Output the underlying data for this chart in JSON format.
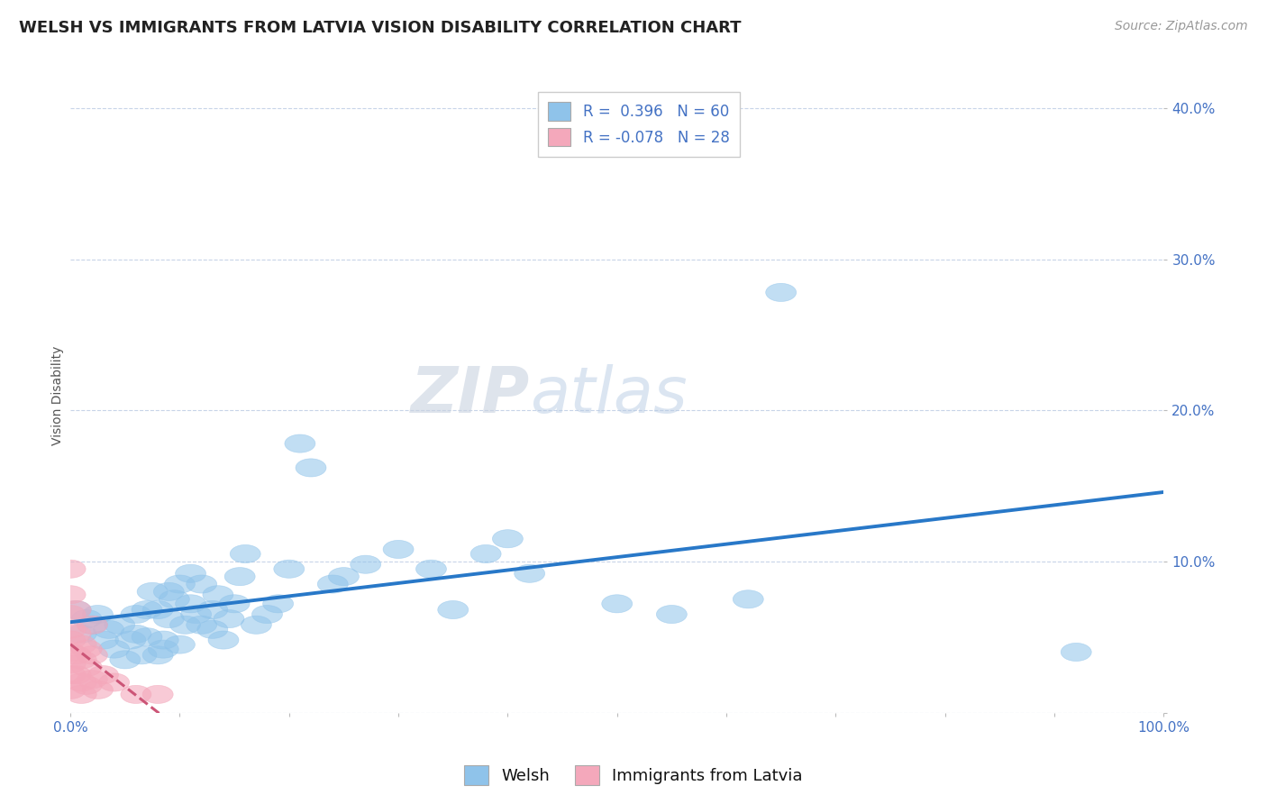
{
  "title": "WELSH VS IMMIGRANTS FROM LATVIA VISION DISABILITY CORRELATION CHART",
  "source": "Source: ZipAtlas.com",
  "ylabel": "Vision Disability",
  "xlim": [
    0.0,
    1.0
  ],
  "ylim": [
    0.0,
    0.42
  ],
  "xticks": [
    0.0,
    0.1,
    0.2,
    0.3,
    0.4,
    0.5,
    0.6,
    0.7,
    0.8,
    0.9,
    1.0
  ],
  "yticks": [
    0.0,
    0.1,
    0.2,
    0.3,
    0.4
  ],
  "ytick_labels": [
    "",
    "10.0%",
    "20.0%",
    "30.0%",
    "40.0%"
  ],
  "xtick_labels": [
    "0.0%",
    "",
    "",
    "",
    "",
    "",
    "",
    "",
    "",
    "",
    "100.0%"
  ],
  "welsh_R": 0.396,
  "welsh_N": 60,
  "latvia_R": -0.078,
  "latvia_N": 28,
  "welsh_color": "#8fc3ea",
  "latvia_color": "#f4a8bb",
  "welsh_line_color": "#2878c8",
  "latvia_line_color": "#cc5577",
  "background_color": "#ffffff",
  "grid_color": "#c8d4e8",
  "welsh_points": [
    [
      0.005,
      0.068
    ],
    [
      0.01,
      0.052
    ],
    [
      0.015,
      0.062
    ],
    [
      0.02,
      0.058
    ],
    [
      0.025,
      0.065
    ],
    [
      0.03,
      0.048
    ],
    [
      0.035,
      0.055
    ],
    [
      0.04,
      0.042
    ],
    [
      0.045,
      0.058
    ],
    [
      0.05,
      0.035
    ],
    [
      0.055,
      0.048
    ],
    [
      0.06,
      0.052
    ],
    [
      0.06,
      0.065
    ],
    [
      0.065,
      0.038
    ],
    [
      0.07,
      0.05
    ],
    [
      0.07,
      0.068
    ],
    [
      0.075,
      0.08
    ],
    [
      0.08,
      0.038
    ],
    [
      0.08,
      0.068
    ],
    [
      0.085,
      0.042
    ],
    [
      0.085,
      0.048
    ],
    [
      0.09,
      0.062
    ],
    [
      0.09,
      0.08
    ],
    [
      0.095,
      0.075
    ],
    [
      0.1,
      0.045
    ],
    [
      0.1,
      0.085
    ],
    [
      0.105,
      0.058
    ],
    [
      0.11,
      0.092
    ],
    [
      0.11,
      0.072
    ],
    [
      0.115,
      0.065
    ],
    [
      0.12,
      0.058
    ],
    [
      0.12,
      0.085
    ],
    [
      0.13,
      0.055
    ],
    [
      0.13,
      0.068
    ],
    [
      0.135,
      0.078
    ],
    [
      0.14,
      0.048
    ],
    [
      0.145,
      0.062
    ],
    [
      0.15,
      0.072
    ],
    [
      0.155,
      0.09
    ],
    [
      0.16,
      0.105
    ],
    [
      0.17,
      0.058
    ],
    [
      0.18,
      0.065
    ],
    [
      0.19,
      0.072
    ],
    [
      0.2,
      0.095
    ],
    [
      0.21,
      0.178
    ],
    [
      0.22,
      0.162
    ],
    [
      0.24,
      0.085
    ],
    [
      0.25,
      0.09
    ],
    [
      0.27,
      0.098
    ],
    [
      0.3,
      0.108
    ],
    [
      0.33,
      0.095
    ],
    [
      0.35,
      0.068
    ],
    [
      0.38,
      0.105
    ],
    [
      0.4,
      0.115
    ],
    [
      0.42,
      0.092
    ],
    [
      0.5,
      0.072
    ],
    [
      0.55,
      0.065
    ],
    [
      0.62,
      0.075
    ],
    [
      0.65,
      0.278
    ],
    [
      0.92,
      0.04
    ]
  ],
  "latvia_points": [
    [
      0.0,
      0.078
    ],
    [
      0.0,
      0.065
    ],
    [
      0.0,
      0.055
    ],
    [
      0.0,
      0.048
    ],
    [
      0.0,
      0.04
    ],
    [
      0.0,
      0.032
    ],
    [
      0.0,
      0.025
    ],
    [
      0.0,
      0.015
    ],
    [
      0.005,
      0.068
    ],
    [
      0.005,
      0.052
    ],
    [
      0.005,
      0.038
    ],
    [
      0.005,
      0.025
    ],
    [
      0.01,
      0.045
    ],
    [
      0.01,
      0.035
    ],
    [
      0.01,
      0.02
    ],
    [
      0.01,
      0.012
    ],
    [
      0.015,
      0.042
    ],
    [
      0.015,
      0.03
    ],
    [
      0.015,
      0.018
    ],
    [
      0.02,
      0.058
    ],
    [
      0.02,
      0.038
    ],
    [
      0.02,
      0.022
    ],
    [
      0.025,
      0.015
    ],
    [
      0.03,
      0.025
    ],
    [
      0.04,
      0.02
    ],
    [
      0.06,
      0.012
    ],
    [
      0.08,
      0.012
    ],
    [
      0.0,
      0.095
    ]
  ],
  "title_fontsize": 13,
  "source_fontsize": 10,
  "axis_label_fontsize": 10,
  "tick_fontsize": 11,
  "legend_fontsize": 12
}
